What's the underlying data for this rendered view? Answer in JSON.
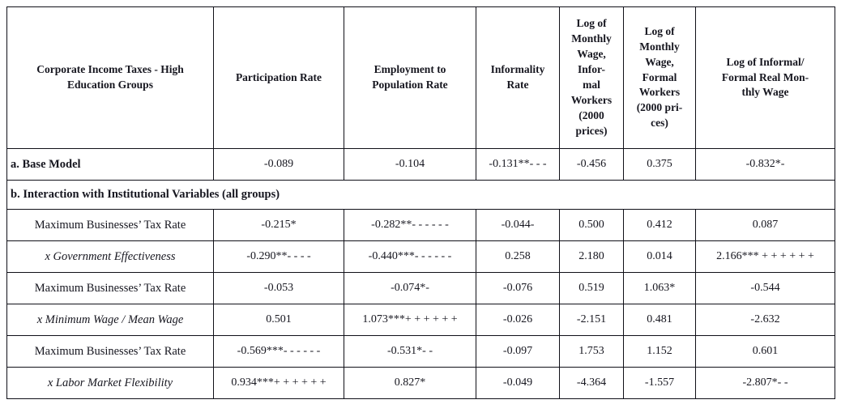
{
  "table": {
    "corner_header": "Corporate Income Taxes - High\nEducation Groups",
    "columns": [
      {
        "label": "Participation Rate"
      },
      {
        "label": "Employment to\nPopulation Rate"
      },
      {
        "label": "Informality\nRate"
      },
      {
        "label": "Log of\nMonthly\nWage,\nInfor-\nmal\nWorkers\n(2000\nprices)"
      },
      {
        "label": "Log of\nMonthly\nWage,\nFormal\nWorkers\n(2000 pri-\nces)"
      },
      {
        "label": "Log of Informal/\nFormal Real Mon-\nthly Wage"
      }
    ],
    "rows": [
      {
        "label": "a. Base Model",
        "values": [
          "-0.089",
          "-0.104",
          "-0.131**- - -",
          "-0.456",
          "0.375",
          "-0.832*-"
        ]
      },
      {
        "section": "b. Interaction with Institutional Variables (all groups)"
      },
      {
        "label": "Maximum Businesses’ Tax Rate",
        "values": [
          "-0.215*",
          "-0.282**- - - - - -",
          "-0.044-",
          "0.500",
          "0.412",
          "0.087"
        ]
      },
      {
        "label": "x Government Effectiveness",
        "values": [
          "-0.290**- - - -",
          "-0.440***- - - - - -",
          "0.258",
          "2.180",
          "0.014",
          "2.166*** + + + + + +"
        ]
      },
      {
        "label": "Maximum Businesses’ Tax Rate",
        "values": [
          "-0.053",
          "-0.074*-",
          "-0.076",
          "0.519",
          "1.063*",
          "-0.544"
        ]
      },
      {
        "label": "x Minimum Wage / Mean Wage",
        "values": [
          "0.501",
          "1.073***+ + + + + +",
          "-0.026",
          "-2.151",
          "0.481",
          "-2.632"
        ]
      },
      {
        "label": "Maximum Businesses’ Tax Rate",
        "values": [
          "-0.569***- - - - - -",
          "-0.531*- -",
          "-0.097",
          "1.753",
          "1.152",
          "0.601"
        ]
      },
      {
        "label": "x Labor Market Flexibility",
        "values": [
          "0.934***+ + + + + +",
          "0.827*",
          "-0.049",
          "-4.364",
          "-1.557",
          "-2.807*- -"
        ]
      }
    ]
  }
}
